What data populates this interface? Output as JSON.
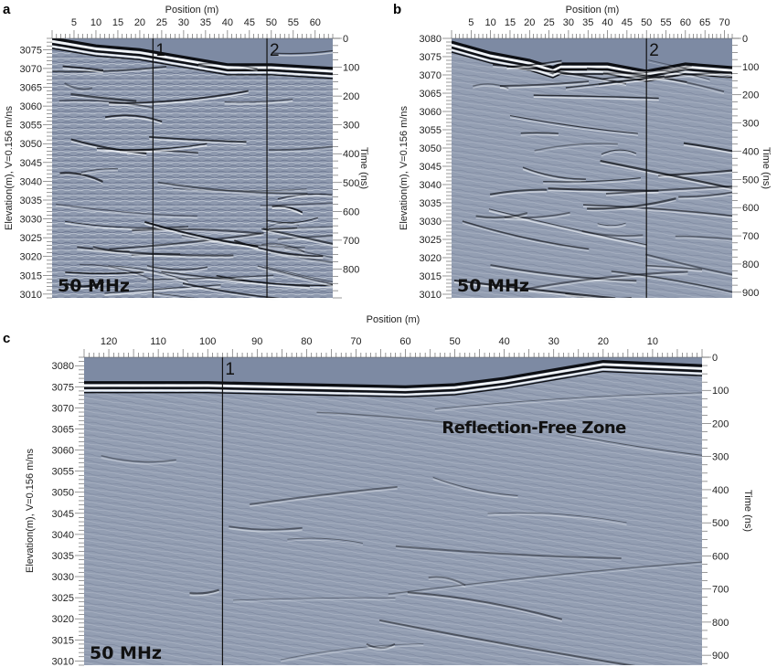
{
  "figure": {
    "background_color": "#ffffff",
    "radar_background": "#8e99ae",
    "air_color": "#7d8aa3",
    "reflector_dark": "#0d0f14",
    "reflector_light": "#f2f5f8"
  },
  "chart_data": [
    {
      "type": "heatmap",
      "panel": "a",
      "title": "",
      "xlabel": "Position (m)",
      "ylabel": "Elevation(m), V=0.156 m/ns",
      "y2label": "Time (ns)",
      "xlim": [
        0,
        64
      ],
      "ylim": [
        3009,
        3078
      ],
      "y2lim": [
        0,
        900
      ],
      "x_ticks": [
        5,
        10,
        15,
        20,
        25,
        30,
        35,
        40,
        45,
        50,
        55,
        60
      ],
      "y_ticks": [
        3075,
        3070,
        3065,
        3060,
        3055,
        3050,
        3045,
        3040,
        3035,
        3030,
        3025,
        3020,
        3015,
        3010
      ],
      "y2_ticks": [
        0,
        100,
        200,
        300,
        400,
        500,
        600,
        700,
        800
      ],
      "frequency_label": "50 MHz",
      "markers": [
        {
          "label": "1",
          "position": 23
        },
        {
          "label": "2",
          "position": 49
        }
      ],
      "surface": [
        [
          0,
          3078
        ],
        [
          10,
          3076
        ],
        [
          20,
          3075
        ],
        [
          30,
          3073
        ],
        [
          40,
          3071
        ],
        [
          50,
          3071
        ],
        [
          64,
          3070
        ]
      ],
      "annotations": []
    },
    {
      "type": "heatmap",
      "panel": "b",
      "title": "",
      "xlabel": "Position (m)",
      "ylabel": "Elevation(m), V=0.156 m/ns",
      "y2label": "Time (ns)",
      "xlim": [
        0,
        72
      ],
      "ylim": [
        3009,
        3080
      ],
      "y2lim": [
        0,
        920
      ],
      "x_ticks": [
        5,
        10,
        15,
        20,
        25,
        30,
        35,
        40,
        45,
        50,
        55,
        60,
        65,
        70
      ],
      "y_ticks": [
        3080,
        3075,
        3070,
        3065,
        3060,
        3055,
        3050,
        3045,
        3040,
        3035,
        3030,
        3025,
        3020,
        3015,
        3010
      ],
      "y2_ticks": [
        0,
        100,
        200,
        300,
        400,
        500,
        600,
        700,
        800,
        900
      ],
      "frequency_label": "50 MHz",
      "markers": [
        {
          "label": "2",
          "position": 50
        }
      ],
      "surface": [
        [
          0,
          3079
        ],
        [
          10,
          3076
        ],
        [
          20,
          3074
        ],
        [
          26,
          3072
        ],
        [
          28,
          3073
        ],
        [
          40,
          3073
        ],
        [
          50,
          3071
        ],
        [
          60,
          3073
        ],
        [
          72,
          3072
        ]
      ],
      "annotations": []
    },
    {
      "type": "heatmap",
      "panel": "c",
      "title": "",
      "xlabel": "Position (m)",
      "ylabel": "Elevation(m), V=0.156 m/ns",
      "y2label": "Time (ns)",
      "xlim": [
        125,
        0
      ],
      "ylim": [
        3009,
        3082
      ],
      "y2lim": [
        0,
        930
      ],
      "x_ticks": [
        120,
        110,
        100,
        90,
        80,
        70,
        60,
        50,
        40,
        30,
        20,
        10
      ],
      "y_ticks": [
        3080,
        3075,
        3070,
        3065,
        3060,
        3055,
        3050,
        3045,
        3040,
        3035,
        3030,
        3025,
        3020,
        3015,
        3010
      ],
      "y2_ticks": [
        0,
        100,
        200,
        300,
        400,
        500,
        600,
        700,
        800,
        900
      ],
      "frequency_label": "50 MHz",
      "markers": [
        {
          "label": "1",
          "position": 97
        }
      ],
      "surface": [
        [
          125,
          3076
        ],
        [
          100,
          3076
        ],
        [
          80,
          3075.5
        ],
        [
          60,
          3075
        ],
        [
          50,
          3075.5
        ],
        [
          40,
          3077
        ],
        [
          30,
          3079
        ],
        [
          20,
          3081
        ],
        [
          10,
          3080.5
        ],
        [
          0,
          3080
        ]
      ],
      "annotations": [
        {
          "text": "Reflection-Free Zone",
          "x": 34,
          "y": 3064
        }
      ]
    }
  ]
}
